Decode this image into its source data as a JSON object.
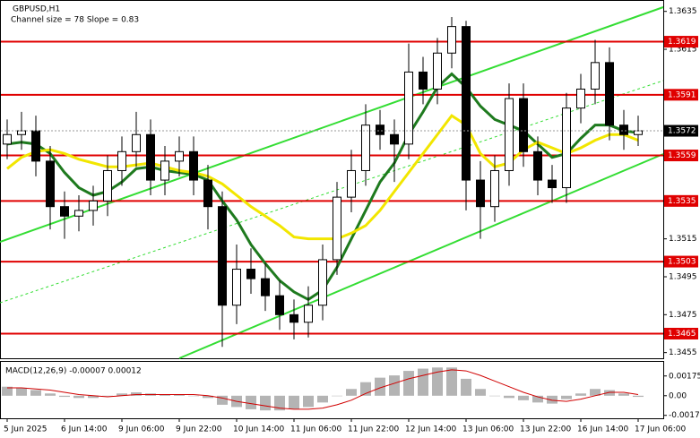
{
  "chart_data": [
    {
      "type": "candlestick",
      "title": "GBPUSD,H1",
      "subtitle": "Channel size = 78 Slope = 0.83",
      "categories": [
        "5 Jun 2025",
        null,
        null,
        null,
        "6 Jun 14:00",
        null,
        null,
        null,
        "9 Jun 06:00",
        null,
        null,
        null,
        "9 Jun 22:00",
        null,
        null,
        null,
        "10 Jun 14:00",
        null,
        null,
        null,
        "11 Jun 06:00",
        null,
        null,
        null,
        "11 Jun 22:00",
        null,
        null,
        null,
        "12 Jun 14:00",
        null,
        null,
        null,
        "13 Jun 06:00",
        null,
        null,
        null,
        "13 Jun 22:00",
        null,
        null,
        null,
        "16 Jun 14:00",
        null,
        null,
        null,
        "17 Jun 06:00"
      ],
      "open": [
        1.3565,
        1.357,
        1.3572,
        1.3556,
        1.3532,
        1.3527,
        1.353,
        1.3535,
        1.3551,
        1.3561,
        1.357,
        1.3546,
        1.3556,
        1.3561,
        1.3546,
        1.3532,
        1.348,
        1.3499,
        1.3494,
        1.3485,
        1.3475,
        1.3471,
        1.348,
        1.3504,
        1.3537,
        1.3551,
        1.3575,
        1.357,
        1.3565,
        1.3603,
        1.3594,
        1.3613,
        1.3627,
        1.3546,
        1.3532,
        1.3551,
        1.3589,
        1.3561,
        1.3546,
        1.3542,
        1.3584,
        1.3594,
        1.3608,
        1.3575,
        1.357
      ],
      "high": [
        1.3578,
        1.3582,
        1.358,
        1.3564,
        1.354,
        1.3538,
        1.3543,
        1.3559,
        1.3569,
        1.3582,
        1.3578,
        1.3564,
        1.3569,
        1.3569,
        1.3554,
        1.354,
        1.3512,
        1.351,
        1.3502,
        1.3493,
        1.3483,
        1.349,
        1.3512,
        1.3545,
        1.3562,
        1.3586,
        1.3583,
        1.3578,
        1.3618,
        1.3611,
        1.3621,
        1.3632,
        1.363,
        1.3556,
        1.3559,
        1.3597,
        1.3597,
        1.3569,
        1.3554,
        1.3592,
        1.3602,
        1.362,
        1.3616,
        1.3583,
        1.358
      ],
      "low": [
        1.3557,
        1.3562,
        1.3548,
        1.352,
        1.3515,
        1.3519,
        1.3522,
        1.3527,
        1.3543,
        1.3553,
        1.3538,
        1.3538,
        1.3548,
        1.3538,
        1.352,
        1.3458,
        1.347,
        1.3486,
        1.3477,
        1.3467,
        1.3462,
        1.3463,
        1.3472,
        1.3496,
        1.3529,
        1.3543,
        1.3562,
        1.3545,
        1.3557,
        1.3586,
        1.3586,
        1.3605,
        1.353,
        1.3515,
        1.3524,
        1.3543,
        1.3553,
        1.3538,
        1.3534,
        1.3534,
        1.3576,
        1.3586,
        1.3567,
        1.3562,
        1.3564
      ],
      "close": [
        1.357,
        1.3572,
        1.3556,
        1.3532,
        1.3527,
        1.353,
        1.3535,
        1.3551,
        1.3561,
        1.357,
        1.3546,
        1.3556,
        1.3561,
        1.3546,
        1.3532,
        1.348,
        1.3499,
        1.3494,
        1.3485,
        1.3475,
        1.3471,
        1.348,
        1.3504,
        1.3537,
        1.3551,
        1.3575,
        1.357,
        1.3565,
        1.3603,
        1.3594,
        1.3613,
        1.3627,
        1.3546,
        1.3532,
        1.3551,
        1.3589,
        1.3561,
        1.3546,
        1.3542,
        1.3584,
        1.3594,
        1.3608,
        1.3575,
        1.357,
        1.3572
      ],
      "up_color": "#ffffff",
      "down_color": "#000000",
      "lines": [
        {
          "color": "#1e7a1e",
          "values": [
            1.3565,
            1.3566,
            1.3565,
            1.356,
            1.355,
            1.3542,
            1.3538,
            1.354,
            1.3545,
            1.3552,
            1.3553,
            1.3551,
            1.355,
            1.3549,
            1.3546,
            1.3535,
            1.3525,
            1.3512,
            1.3502,
            1.3493,
            1.3487,
            1.3483,
            1.3488,
            1.35,
            1.3515,
            1.353,
            1.3545,
            1.3555,
            1.357,
            1.3582,
            1.3595,
            1.3602,
            1.3595,
            1.3585,
            1.3578,
            1.3575,
            1.3572,
            1.3565,
            1.3558,
            1.356,
            1.3568,
            1.3575,
            1.3575,
            1.3572,
            1.3571
          ]
        },
        {
          "color": "#f2e600",
          "values": [
            1.3552,
            1.3558,
            1.3561,
            1.3562,
            1.356,
            1.3557,
            1.3555,
            1.3553,
            1.3553,
            1.3554,
            1.3555,
            1.3553,
            1.3551,
            1.355,
            1.3548,
            1.3544,
            1.3538,
            1.3532,
            1.3527,
            1.3522,
            1.3516,
            1.3515,
            1.3515,
            1.3515,
            1.3518,
            1.3522,
            1.353,
            1.354,
            1.355,
            1.356,
            1.357,
            1.358,
            1.3575,
            1.356,
            1.3553,
            1.3555,
            1.3562,
            1.3566,
            1.3563,
            1.356,
            1.3563,
            1.3567,
            1.357,
            1.357,
            1.3567
          ]
        }
      ],
      "levels": [
        1.3619,
        1.3591,
        1.3559,
        1.3535,
        1.3503,
        1.3465
      ],
      "level_color": "#e00000",
      "last_price": 1.3572,
      "ylim": [
        1.3452,
        1.3641
      ],
      "yticks": [
        1.3635,
        1.3615,
        1.3515,
        1.3495,
        1.3475,
        1.3455
      ]
    },
    {
      "type": "bar",
      "title": "MACD(12,26,9) -0.00007 0.00012",
      "color": "#b4b4b4",
      "values": [
        0.0008,
        0.0007,
        0.0005,
        0.0002,
        -0.0001,
        -0.0002,
        -0.0002,
        0,
        0.0002,
        0.0003,
        0.0002,
        0.0001,
        0.0001,
        0,
        -0.0002,
        -0.0008,
        -0.001,
        -0.0012,
        -0.0013,
        -0.0013,
        -0.0012,
        -0.001,
        -0.0006,
        0,
        0.0006,
        0.0012,
        0.0016,
        0.0018,
        0.0022,
        0.0024,
        0.0025,
        0.0025,
        0.0015,
        0.0006,
        0,
        -0.0002,
        -0.0004,
        -0.0006,
        -0.0007,
        -0.0003,
        0.0002,
        0.0006,
        0.0005,
        0.0002,
        -0.0001
      ],
      "signal": {
        "color": "#d00000",
        "values": [
          0.0007,
          0.0007,
          0.0006,
          0.0005,
          0.0003,
          0.0001,
          0,
          -0.0001,
          0,
          0.0001,
          0.0001,
          0.0001,
          0.0001,
          0.0001,
          0,
          -0.0002,
          -0.0005,
          -0.0007,
          -0.0009,
          -0.0011,
          -0.0012,
          -0.0012,
          -0.0011,
          -0.0008,
          -0.0004,
          0.0002,
          0.0007,
          0.0011,
          0.0015,
          0.0018,
          0.0021,
          0.0023,
          0.0022,
          0.0018,
          0.0013,
          0.0008,
          0.0003,
          -0.0001,
          -0.0004,
          -0.0005,
          -0.0003,
          0,
          0.0003,
          0.0003,
          0.0001
        ]
      },
      "ylim": [
        -0.002,
        0.003
      ],
      "yticks": [
        0.00175,
        {
          "value": 0,
          "label": "0.00"
        },
        -0.00174
      ]
    }
  ]
}
